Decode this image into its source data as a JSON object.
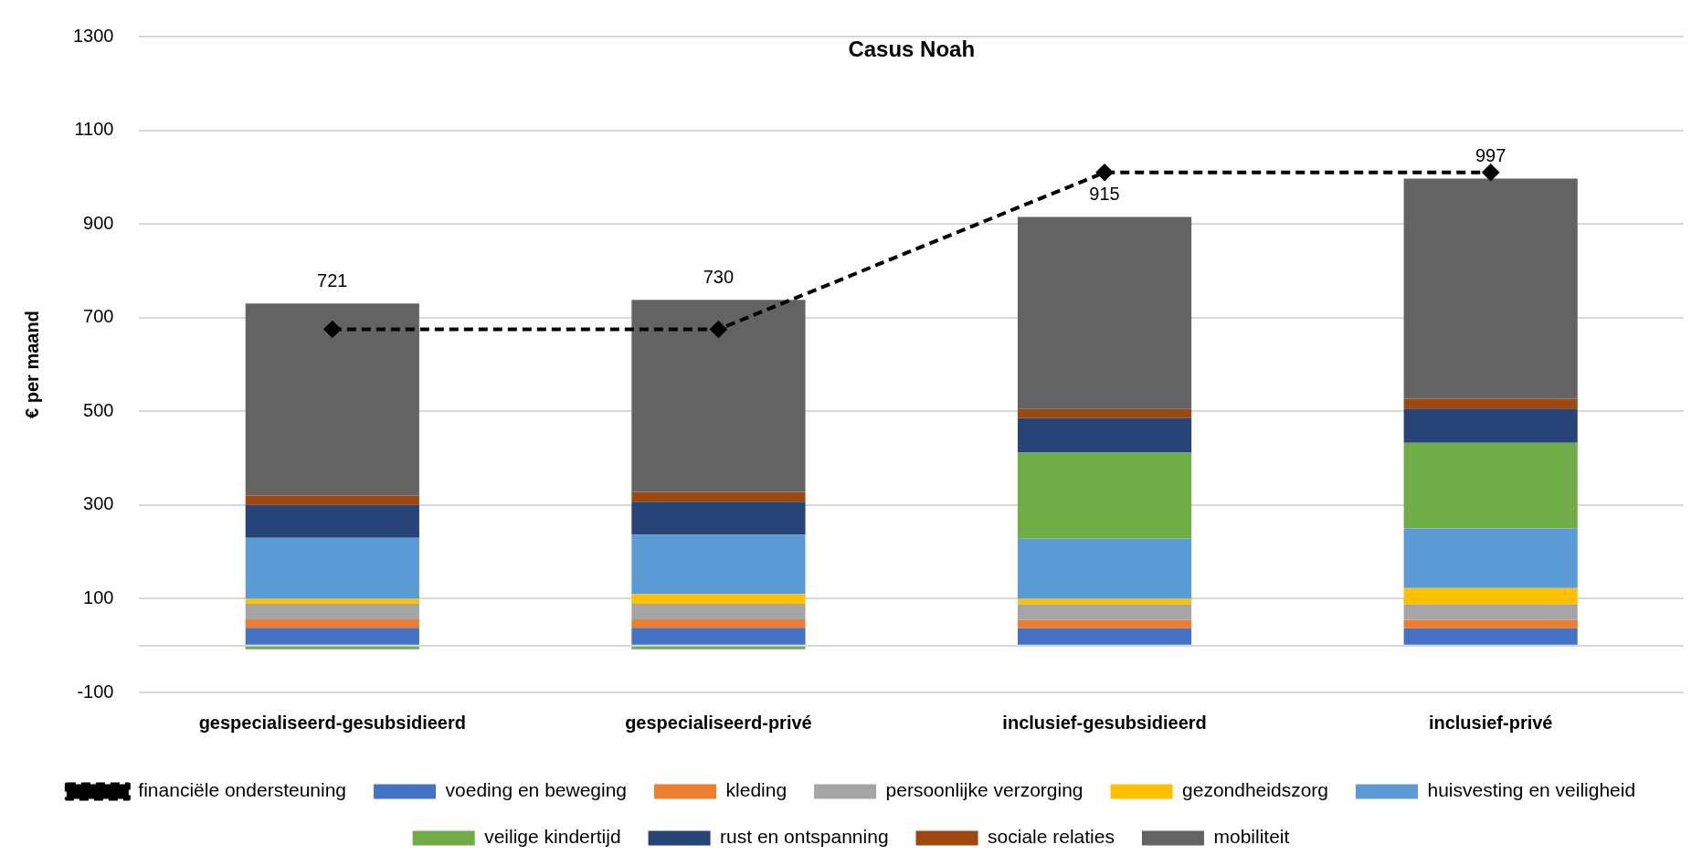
{
  "chart_data": {
    "type": "bar",
    "title": "Casus Noah",
    "ylabel": "€ per maand",
    "categories": [
      "gespecialiseerd-gesubsidieerd",
      "gespecialiseerd-privé",
      "inclusief-gesubsidieerd",
      "inclusief-privé"
    ],
    "stacked": true,
    "series": [
      {
        "name": "voeding en beweging",
        "color": "#4472c4",
        "values": [
          38,
          38,
          37,
          37
        ]
      },
      {
        "name": "kleding",
        "color": "#ed7d31",
        "values": [
          18,
          18,
          18,
          18
        ]
      },
      {
        "name": "persoonlijke verzorging",
        "color": "#a5a5a5",
        "values": [
          33,
          33,
          33,
          33
        ]
      },
      {
        "name": "gezondheidszorg",
        "color": "#ffc000",
        "values": [
          11,
          21,
          12,
          35
        ]
      },
      {
        "name": "huisvesting en veiligheid",
        "color": "#5b9bd5",
        "values": [
          130,
          127,
          128,
          127
        ]
      },
      {
        "name": "veilige kindertijd",
        "color": "#70ad47",
        "values": [
          -8,
          -8,
          184,
          183
        ]
      },
      {
        "name": "rust en ontspanning",
        "color": "#264478",
        "values": [
          70,
          70,
          74,
          73
        ]
      },
      {
        "name": "sociale relaties",
        "color": "#9e480e",
        "values": [
          20,
          21,
          19,
          21
        ]
      },
      {
        "name": "mobiliteit",
        "color": "#636363",
        "values": [
          410,
          410,
          410,
          470
        ]
      },
      {
        "name": "financiële ondersteuning",
        "type": "line",
        "color": "#000000",
        "line_style": "dashed",
        "marker": "diamond",
        "values": [
          675,
          675,
          1010,
          1010
        ]
      }
    ],
    "totals": [
      "721",
      "730",
      "915",
      "997"
    ],
    "ylim": [
      -100,
      1300
    ],
    "yticks": [
      -100,
      {
        "value": 0,
        "label": null
      },
      100,
      300,
      500,
      700,
      900,
      1100,
      1300
    ],
    "grid": "y",
    "legend": "bottom"
  }
}
